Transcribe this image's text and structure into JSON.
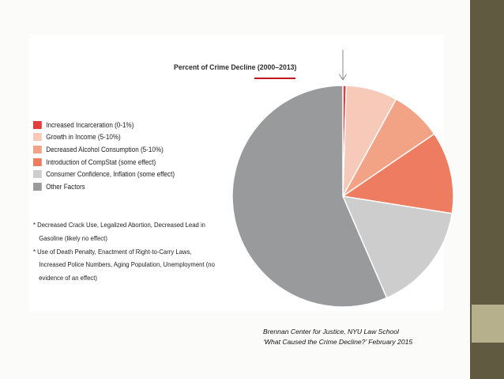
{
  "colors": {
    "sidebar": "#5f5a40",
    "sidebar_tab": "#b6b18c",
    "arrow": "#888888"
  },
  "chart_data": {
    "type": "pie",
    "title": "Percent of Crime Decline (2000–2013)",
    "legend_position": "left",
    "slices": [
      {
        "label": "Increased Incarceration (0-1%)",
        "value": 0.5,
        "color": "#e23c3c"
      },
      {
        "label": "Growth in Income (5-10%)",
        "value": 7.5,
        "color": "#f7c9b8"
      },
      {
        "label": "Decreased Alcohol Consumption (5-10%)",
        "value": 7.5,
        "color": "#f2a386"
      },
      {
        "label": "Introduction of CompStat (some effect)",
        "value": 12,
        "color": "#ee7c60"
      },
      {
        "label": "Consumer Confidence, Inflation (some effect)",
        "value": 16,
        "color": "#cdcdcd"
      },
      {
        "label": "Other Factors",
        "value": 56.5,
        "color": "#999a9c"
      }
    ]
  },
  "notes": [
    {
      "line1": "* Decreased Crack Use, Legalized Abortion, Decreased Lead in",
      "line2": "Gasoline (likely no effect)"
    },
    {
      "line1": "* Use of Death Penalty, Enactment of Right-to-Carry Laws,",
      "line2": "Increased Police Numbers, Aging Population, Unemployment (no",
      "line3": "evidence of an effect)"
    }
  ],
  "source": {
    "line1": "Brennan Center for Justice, NYU Law School",
    "line2": "‘What Caused the Crime Decline?’ February 2015"
  }
}
